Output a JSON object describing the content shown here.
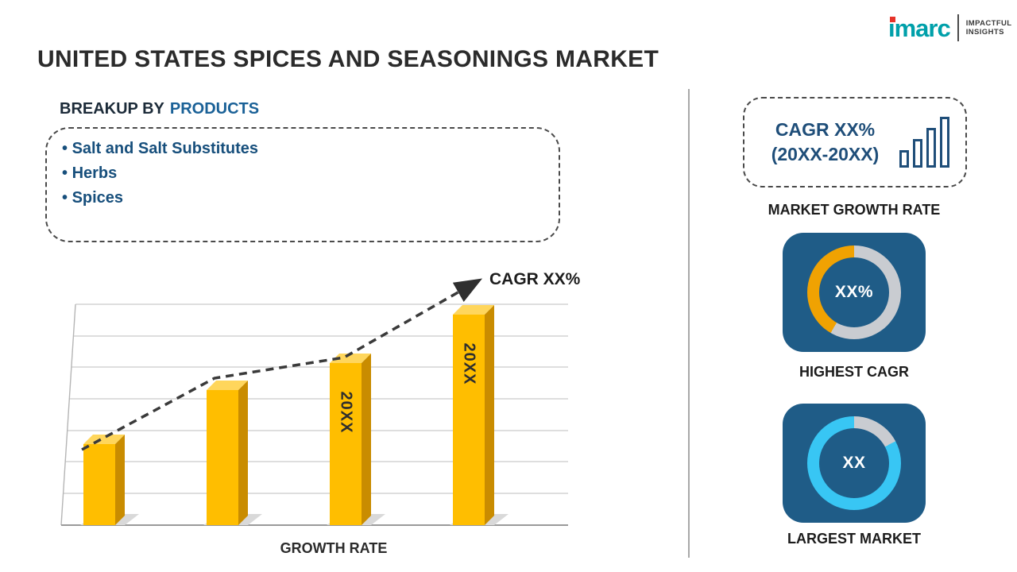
{
  "title": "UNITED STATES SPICES AND SEASONINGS MARKET",
  "logo": {
    "brand": "imarc",
    "tagline": [
      "IMPACTFUL",
      "INSIGHTS"
    ],
    "brand_color": "#00a0aa",
    "dot_color": "#e63329"
  },
  "breakup": {
    "heading_prefix": "BREAKUP BY",
    "heading_highlight": "PRODUCTS",
    "items": [
      "Salt and Salt Substitutes",
      "Herbs",
      "Spices"
    ]
  },
  "chart_data": {
    "type": "bar",
    "categories": [
      "",
      "",
      "20XX",
      "20XX"
    ],
    "values": [
      30,
      50,
      60,
      78
    ],
    "ylim": [
      0,
      100
    ],
    "xlabel": "GROWTH RATE",
    "ylabel": "",
    "grid": true,
    "annotation": "CAGR XX%",
    "trendline": "dashed rising arrow across bar tops",
    "bar_color": "#ffbe00",
    "legend": "none"
  },
  "sidebar": {
    "growth_box": {
      "line1": "CAGR XX%",
      "line2": "(20XX-20XX)",
      "icon": "growth-bars-icon"
    },
    "market_growth_label": "MARKET GROWTH RATE",
    "highest_cagr": {
      "value": "XX%",
      "label": "HIGHEST CAGR",
      "ring_colors": [
        "#f0a202",
        "#c9ccd1"
      ]
    },
    "largest_market": {
      "value": "XX",
      "label": "LARGEST MARKET",
      "ring_colors": [
        "#38c6f4",
        "#c9ccd1"
      ]
    },
    "card_color": "#1f5c87"
  },
  "colors": {
    "accent_blue": "#1a6197",
    "deep_blue": "#174f7c",
    "box_blue": "#1f4e79",
    "bar_gold": "#ffbe00",
    "card_blue": "#1f5c87",
    "cyan": "#38c6f4",
    "amber": "#f0a202",
    "ring_gray": "#c9ccd1",
    "title_text": "#2b2b2b"
  }
}
